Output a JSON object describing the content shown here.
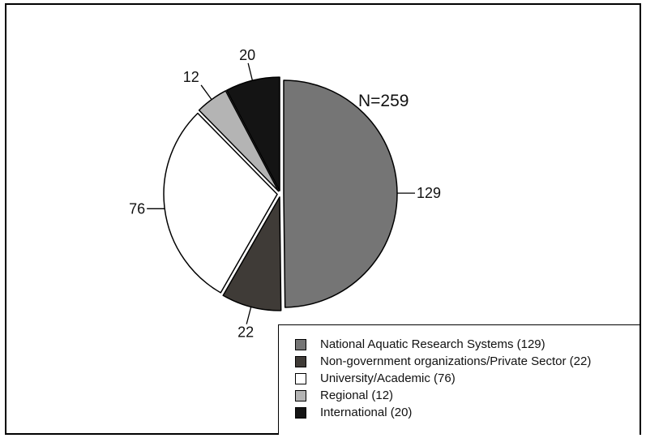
{
  "chart_data": {
    "type": "pie",
    "title": "",
    "annotation": "N=259",
    "start": "12 o'clock",
    "direction": "clockwise",
    "categories": [
      "National Aquatic Research Systems",
      "Non-government organizations/Private Sector",
      "University/Academic",
      "Regional",
      "International"
    ],
    "values": [
      129,
      22,
      76,
      12,
      20
    ],
    "slice_labels": [
      "129",
      "22",
      "76",
      "12",
      "20"
    ],
    "colors": [
      "#757575",
      "#3f3b37",
      "#ffffff",
      "#b4b4b4",
      "#141414"
    ],
    "legend": {
      "placement": "bottom-right",
      "entries": [
        "National Aquatic Research Systems (129)",
        "Non-government organizations/Private Sector (22)",
        "University/Academic (76)",
        "Regional (12)",
        "International (20)"
      ]
    }
  }
}
